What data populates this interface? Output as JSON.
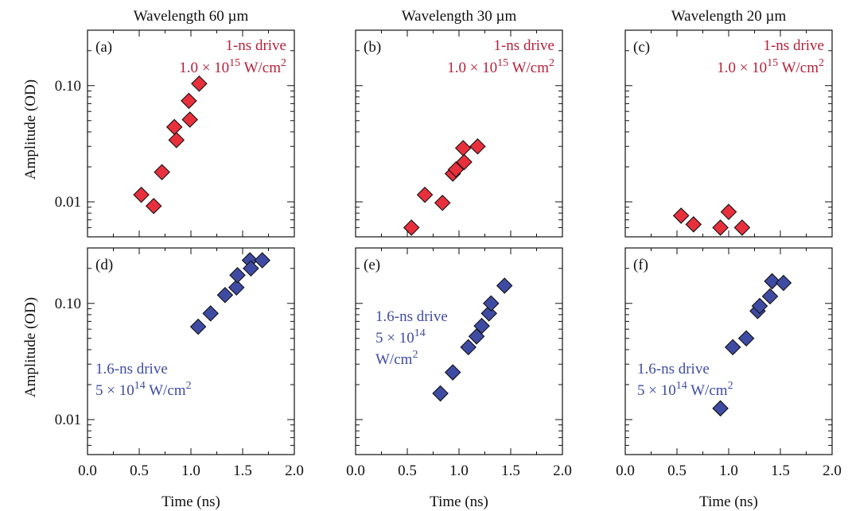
{
  "figure": {
    "ylabel": "Amplitude (OD)",
    "xlabel": "Time (ns)",
    "column_titles": [
      "Wavelength 60 µm",
      "Wavelength 30 µm",
      "Wavelength 20 µm"
    ],
    "colors": {
      "red_series": "#e8303c",
      "red_text": "#b5213a",
      "blue_series": "#3f4ba3",
      "blue_text": "#3f4ba3"
    }
  },
  "chart_data": [
    {
      "type": "scatter",
      "panel_label": "(a)",
      "yscale": "log",
      "xlim": [
        0,
        2
      ],
      "ylim": [
        0.005,
        0.3
      ],
      "x_ticks": [
        "0.0",
        "0.5",
        "1.0",
        "1.5",
        "2.0"
      ],
      "y_ticks": [
        "0.01",
        "0.10"
      ],
      "annotation": {
        "line1": "1-ns drive",
        "line2_pre": "1.0 × 10",
        "line2_sup": "15",
        "line2_post": " W/cm",
        "line2_sup2": "2"
      },
      "points": [
        [
          0.52,
          0.0115
        ],
        [
          0.64,
          0.0092
        ],
        [
          0.72,
          0.018
        ],
        [
          0.84,
          0.044
        ],
        [
          0.86,
          0.034
        ],
        [
          0.98,
          0.074
        ],
        [
          0.99,
          0.051
        ],
        [
          1.08,
          0.104
        ]
      ]
    },
    {
      "type": "scatter",
      "panel_label": "(b)",
      "yscale": "log",
      "xlim": [
        0,
        2
      ],
      "ylim": [
        0.005,
        0.3
      ],
      "x_ticks": [
        "0.0",
        "0.5",
        "1.0",
        "1.5",
        "2.0"
      ],
      "y_ticks": [
        "0.01",
        "0.10"
      ],
      "annotation": {
        "line1": "1-ns drive",
        "line2_pre": "1.0 × 10",
        "line2_sup": "15",
        "line2_post": " W/cm",
        "line2_sup2": "2"
      },
      "points": [
        [
          0.54,
          0.006
        ],
        [
          0.67,
          0.0115
        ],
        [
          0.84,
          0.0098
        ],
        [
          0.94,
          0.0175
        ],
        [
          0.97,
          0.019
        ],
        [
          1.04,
          0.029
        ],
        [
          1.05,
          0.022
        ],
        [
          1.18,
          0.03
        ]
      ]
    },
    {
      "type": "scatter",
      "panel_label": "(c)",
      "yscale": "log",
      "xlim": [
        0,
        2
      ],
      "ylim": [
        0.005,
        0.3
      ],
      "x_ticks": [
        "0.0",
        "0.5",
        "1.0",
        "1.5",
        "2.0"
      ],
      "y_ticks": [
        "0.01",
        "0.10"
      ],
      "annotation": {
        "line1": "1-ns drive",
        "line2_pre": "1.0 × 10",
        "line2_sup": "15",
        "line2_post": " W/cm",
        "line2_sup2": "2"
      },
      "points": [
        [
          0.54,
          0.0076
        ],
        [
          0.66,
          0.0064
        ],
        [
          0.92,
          0.006
        ],
        [
          1.0,
          0.0082
        ],
        [
          1.13,
          0.006
        ]
      ]
    },
    {
      "type": "scatter",
      "panel_label": "(d)",
      "yscale": "log",
      "xlim": [
        0,
        2
      ],
      "ylim": [
        0.005,
        0.3
      ],
      "x_ticks": [
        "0.0",
        "0.5",
        "1.0",
        "1.5",
        "2.0"
      ],
      "y_ticks": [
        "0.01",
        "0.10"
      ],
      "annotation": {
        "line1": "1.6-ns drive",
        "line2_pre": "5 × 10",
        "line2_sup": "14",
        "line2_post": " W/cm",
        "line2_sup2": "2"
      },
      "points": [
        [
          1.07,
          0.063
        ],
        [
          1.19,
          0.082
        ],
        [
          1.33,
          0.118
        ],
        [
          1.44,
          0.137
        ],
        [
          1.45,
          0.175
        ],
        [
          1.57,
          0.235
        ],
        [
          1.58,
          0.2
        ],
        [
          1.69,
          0.235
        ]
      ]
    },
    {
      "type": "scatter",
      "panel_label": "(e)",
      "yscale": "log",
      "xlim": [
        0,
        2
      ],
      "ylim": [
        0.005,
        0.3
      ],
      "x_ticks": [
        "0.0",
        "0.5",
        "1.0",
        "1.5",
        "2.0"
      ],
      "y_ticks": [
        "0.01",
        "0.10"
      ],
      "annotation": {
        "line1": "1.6-ns drive",
        "line2_pre": "5 × 10",
        "line2_sup": "14",
        "line2_post": "",
        "line3_pre": "W/cm",
        "line3_sup": "2"
      },
      "points": [
        [
          0.82,
          0.0168
        ],
        [
          0.94,
          0.0255
        ],
        [
          1.09,
          0.042
        ],
        [
          1.17,
          0.052
        ],
        [
          1.22,
          0.064
        ],
        [
          1.29,
          0.082
        ],
        [
          1.31,
          0.1
        ],
        [
          1.44,
          0.142
        ]
      ]
    },
    {
      "type": "scatter",
      "panel_label": "(f)",
      "yscale": "log",
      "xlim": [
        0,
        2
      ],
      "ylim": [
        0.005,
        0.3
      ],
      "x_ticks": [
        "0.0",
        "0.5",
        "1.0",
        "1.5",
        "2.0"
      ],
      "y_ticks": [
        "0.01",
        "0.10"
      ],
      "annotation": {
        "line1": "1.6-ns drive",
        "line2_pre": "5 × 10",
        "line2_sup": "14",
        "line2_post": " W/cm",
        "line2_sup2": "2"
      },
      "points": [
        [
          0.92,
          0.0125
        ],
        [
          1.04,
          0.042
        ],
        [
          1.17,
          0.05
        ],
        [
          1.28,
          0.086
        ],
        [
          1.3,
          0.095
        ],
        [
          1.4,
          0.115
        ],
        [
          1.42,
          0.155
        ],
        [
          1.53,
          0.15
        ]
      ]
    }
  ]
}
